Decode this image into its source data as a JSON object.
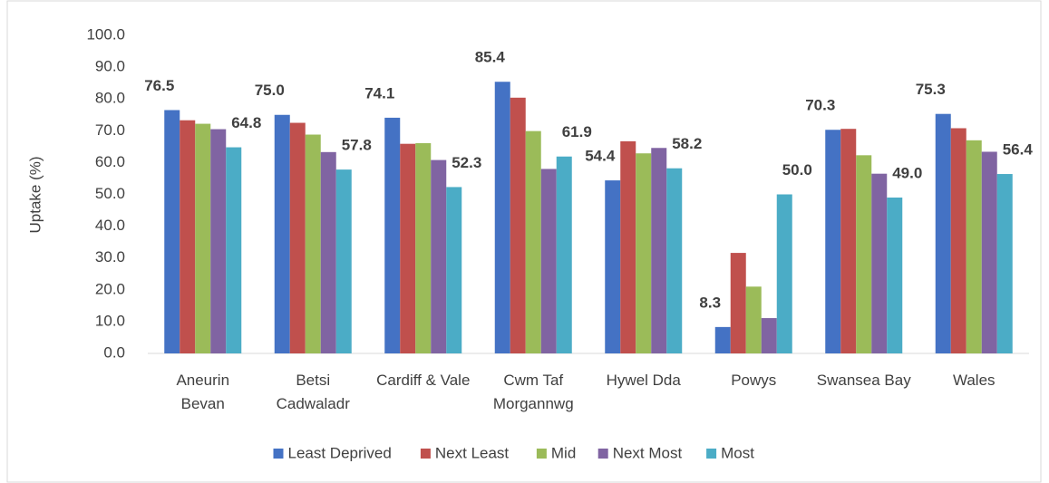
{
  "chart_data": {
    "type": "bar",
    "y_label": "Uptake (%)",
    "categories": [
      "Aneurin Bevan",
      "Betsi Cadwaladr",
      "Cardiff & Vale",
      "Cwm Taf Morgannwg",
      "Hywel Dda",
      "Powys",
      "Swansea Bay",
      "Wales"
    ],
    "series": [
      {
        "name": "Least Deprived",
        "color": "#4472c4",
        "values": [
          76.5,
          75.0,
          74.1,
          85.4,
          54.4,
          8.3,
          70.3,
          75.3
        ],
        "value_labels": [
          "76.5",
          "75.0",
          "74.1",
          "85.4",
          "54.4",
          "8.3",
          "70.3",
          "75.3"
        ]
      },
      {
        "name": "Next Least",
        "color": "#c0504d",
        "values": [
          73.3,
          72.5,
          65.9,
          80.4,
          66.7,
          31.6,
          70.6,
          70.8
        ]
      },
      {
        "name": "Mid",
        "color": "#9bbb59",
        "values": [
          72.2,
          68.8,
          66.1,
          69.9,
          62.9,
          21.0,
          62.3,
          67.0
        ]
      },
      {
        "name": "Next Most",
        "color": "#8064a2",
        "values": [
          70.5,
          63.3,
          60.8,
          58.0,
          64.6,
          11.1,
          56.5,
          63.4
        ]
      },
      {
        "name": "Most",
        "color": "#4bacc6",
        "values": [
          64.8,
          57.8,
          52.3,
          61.9,
          58.2,
          50.0,
          49.0,
          56.4
        ],
        "value_labels": [
          "64.8",
          "57.8",
          "52.3",
          "61.9",
          "58.2",
          "50.0",
          "49.0",
          "56.4"
        ]
      }
    ],
    "ylim": [
      0,
      100
    ],
    "yticks": [
      {
        "value": 0,
        "label": "0.0"
      },
      {
        "value": 10,
        "label": "10.0"
      },
      {
        "value": 20,
        "label": "20.0"
      },
      {
        "value": 30,
        "label": "30.0"
      },
      {
        "value": 40,
        "label": "40.0"
      },
      {
        "value": 50,
        "label": "50.0"
      },
      {
        "value": 60,
        "label": "60.0"
      },
      {
        "value": 70,
        "label": "70.0"
      },
      {
        "value": 80,
        "label": "80.0"
      },
      {
        "value": 90,
        "label": "90.0"
      },
      {
        "value": 100,
        "label": "100.0"
      }
    ],
    "grid": false,
    "legend": "bottom"
  }
}
